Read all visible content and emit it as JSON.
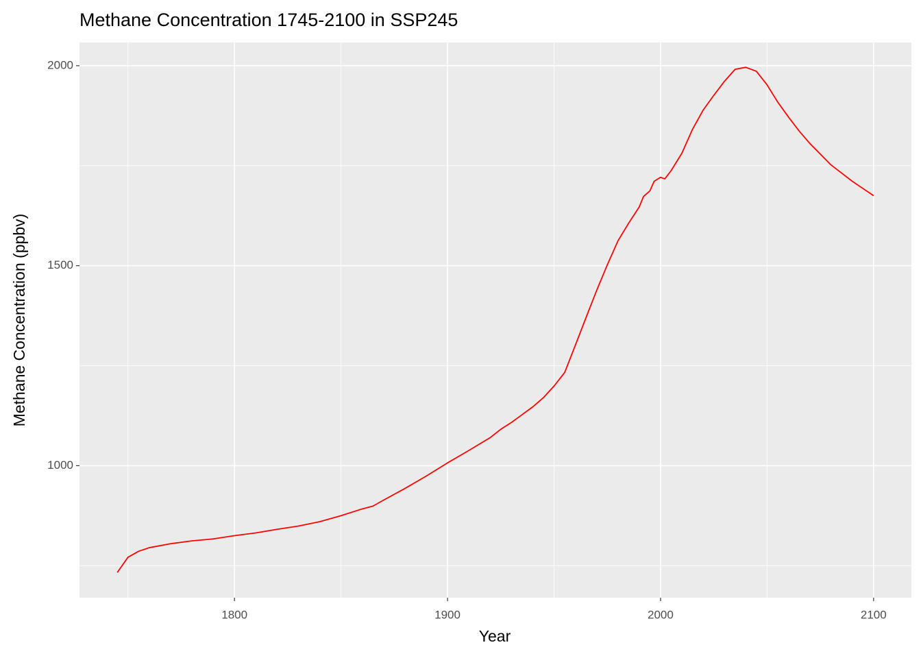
{
  "chart_data": {
    "type": "line",
    "title": "Methane Concentration 1745-2100 in SSP245",
    "x_label": "Year",
    "y_label": "Methane Concentration (ppbv)",
    "x": [
      1745,
      1750,
      1755,
      1760,
      1770,
      1780,
      1790,
      1800,
      1810,
      1820,
      1830,
      1840,
      1850,
      1860,
      1865,
      1870,
      1880,
      1890,
      1900,
      1910,
      1920,
      1925,
      1930,
      1940,
      1945,
      1950,
      1955,
      1960,
      1965,
      1970,
      1975,
      1980,
      1985,
      1990,
      1992,
      1995,
      1997,
      2000,
      2002,
      2005,
      2010,
      2015,
      2020,
      2025,
      2030,
      2035,
      2040,
      2045,
      2050,
      2055,
      2060,
      2065,
      2070,
      2080,
      2090,
      2100
    ],
    "series": [
      {
        "color": "#ff0000",
        "values": [
          733,
          771,
          786,
          795,
          805,
          812,
          817,
          825,
          832,
          841,
          849,
          860,
          875,
          892,
          899,
          914,
          943,
          974,
          1007,
          1038,
          1070,
          1091,
          1108,
          1147,
          1170,
          1199,
          1233,
          1301,
          1370,
          1438,
          1502,
          1562,
          1606,
          1647,
          1673,
          1687,
          1711,
          1721,
          1717,
          1738,
          1781,
          1841,
          1889,
          1926,
          1961,
          1991,
          1996,
          1986,
          1952,
          1909,
          1872,
          1837,
          1806,
          1752,
          1711,
          1675
        ]
      }
    ],
    "xlim": [
      1727.25,
      2117.75
    ],
    "ylim": [
      670,
      2058
    ],
    "xticks": [
      1800,
      1900,
      2000,
      2100
    ],
    "yticks": [
      1000,
      1500,
      2000
    ],
    "grid": true
  }
}
